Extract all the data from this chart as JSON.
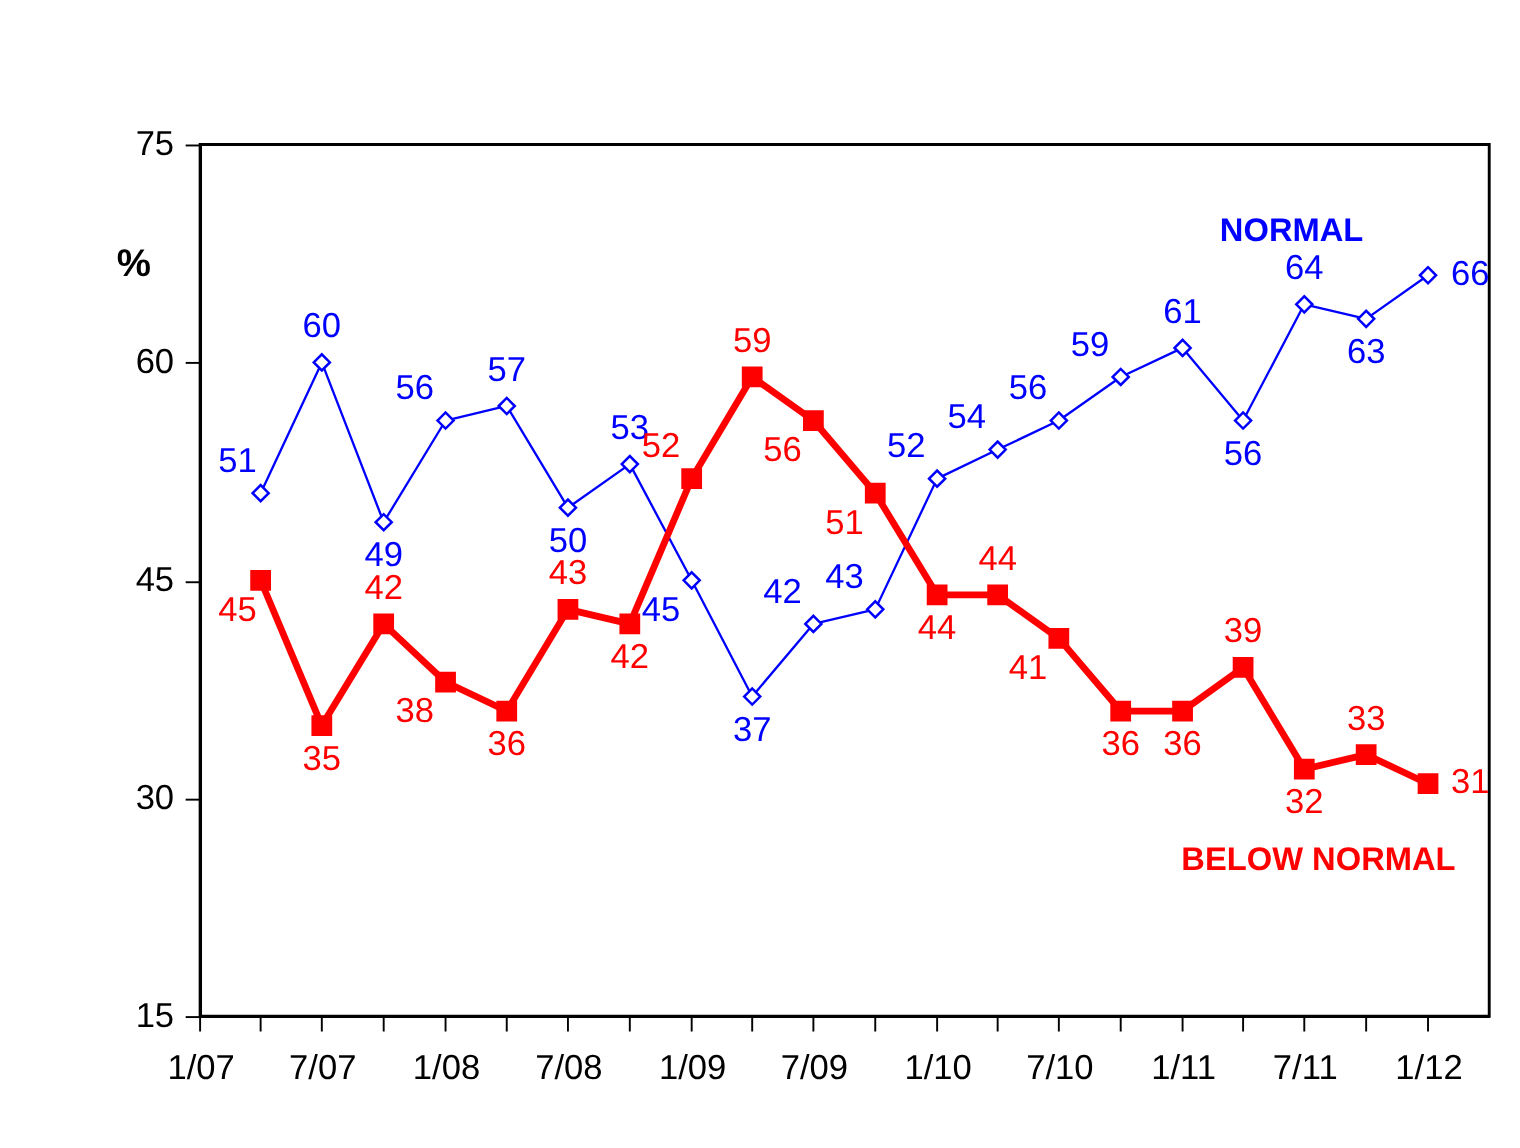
{
  "chart_data": {
    "type": "line",
    "ylabel": "%",
    "x": [
      "2007-04",
      "2007-07",
      "2007-10",
      "2008-01",
      "2008-04",
      "2008-07",
      "2008-10",
      "2009-01",
      "2009-04",
      "2009-07",
      "2009-10",
      "2010-01",
      "2010-04",
      "2010-07",
      "2010-10",
      "2011-01",
      "2011-04",
      "2011-07",
      "2011-10",
      "2012-01"
    ],
    "series": [
      {
        "name": "NORMAL",
        "color": "#0000ff",
        "marker": "diamond",
        "values": [
          51,
          60,
          49,
          56,
          57,
          50,
          53,
          45,
          37,
          42,
          43,
          52,
          54,
          56,
          59,
          61,
          56,
          64,
          63,
          66
        ]
      },
      {
        "name": "BELOW NORMAL",
        "color": "#ff0000",
        "marker": "square",
        "values": [
          45,
          35,
          42,
          38,
          36,
          43,
          42,
          52,
          59,
          56,
          51,
          44,
          44,
          41,
          36,
          36,
          39,
          32,
          33,
          31
        ]
      }
    ],
    "xlim": [
      "2007-01",
      "2012-04"
    ],
    "xticks": [
      {
        "value": "2007-01",
        "label": "1/07"
      },
      {
        "value": "2007-04",
        "label": null
      },
      {
        "value": "2007-07",
        "label": "7/07"
      },
      {
        "value": "2007-10",
        "label": null
      },
      {
        "value": "2008-01",
        "label": "1/08"
      },
      {
        "value": "2008-04",
        "label": null
      },
      {
        "value": "2008-07",
        "label": "7/08"
      },
      {
        "value": "2008-10",
        "label": null
      },
      {
        "value": "2009-01",
        "label": "1/09"
      },
      {
        "value": "2009-04",
        "label": null
      },
      {
        "value": "2009-07",
        "label": "7/09"
      },
      {
        "value": "2009-10",
        "label": null
      },
      {
        "value": "2010-01",
        "label": "1/10"
      },
      {
        "value": "2010-04",
        "label": null
      },
      {
        "value": "2010-07",
        "label": "7/10"
      },
      {
        "value": "2010-10",
        "label": null
      },
      {
        "value": "2011-01",
        "label": "1/11"
      },
      {
        "value": "2011-04",
        "label": null
      },
      {
        "value": "2011-07",
        "label": "7/11"
      },
      {
        "value": "2011-10",
        "label": null
      },
      {
        "value": "2012-01",
        "label": "1/12"
      }
    ],
    "ylim": [
      15,
      75
    ],
    "yticks": [
      15,
      30,
      45,
      60,
      75
    ],
    "grid": false,
    "data_labels": true,
    "line_style": "solid"
  }
}
